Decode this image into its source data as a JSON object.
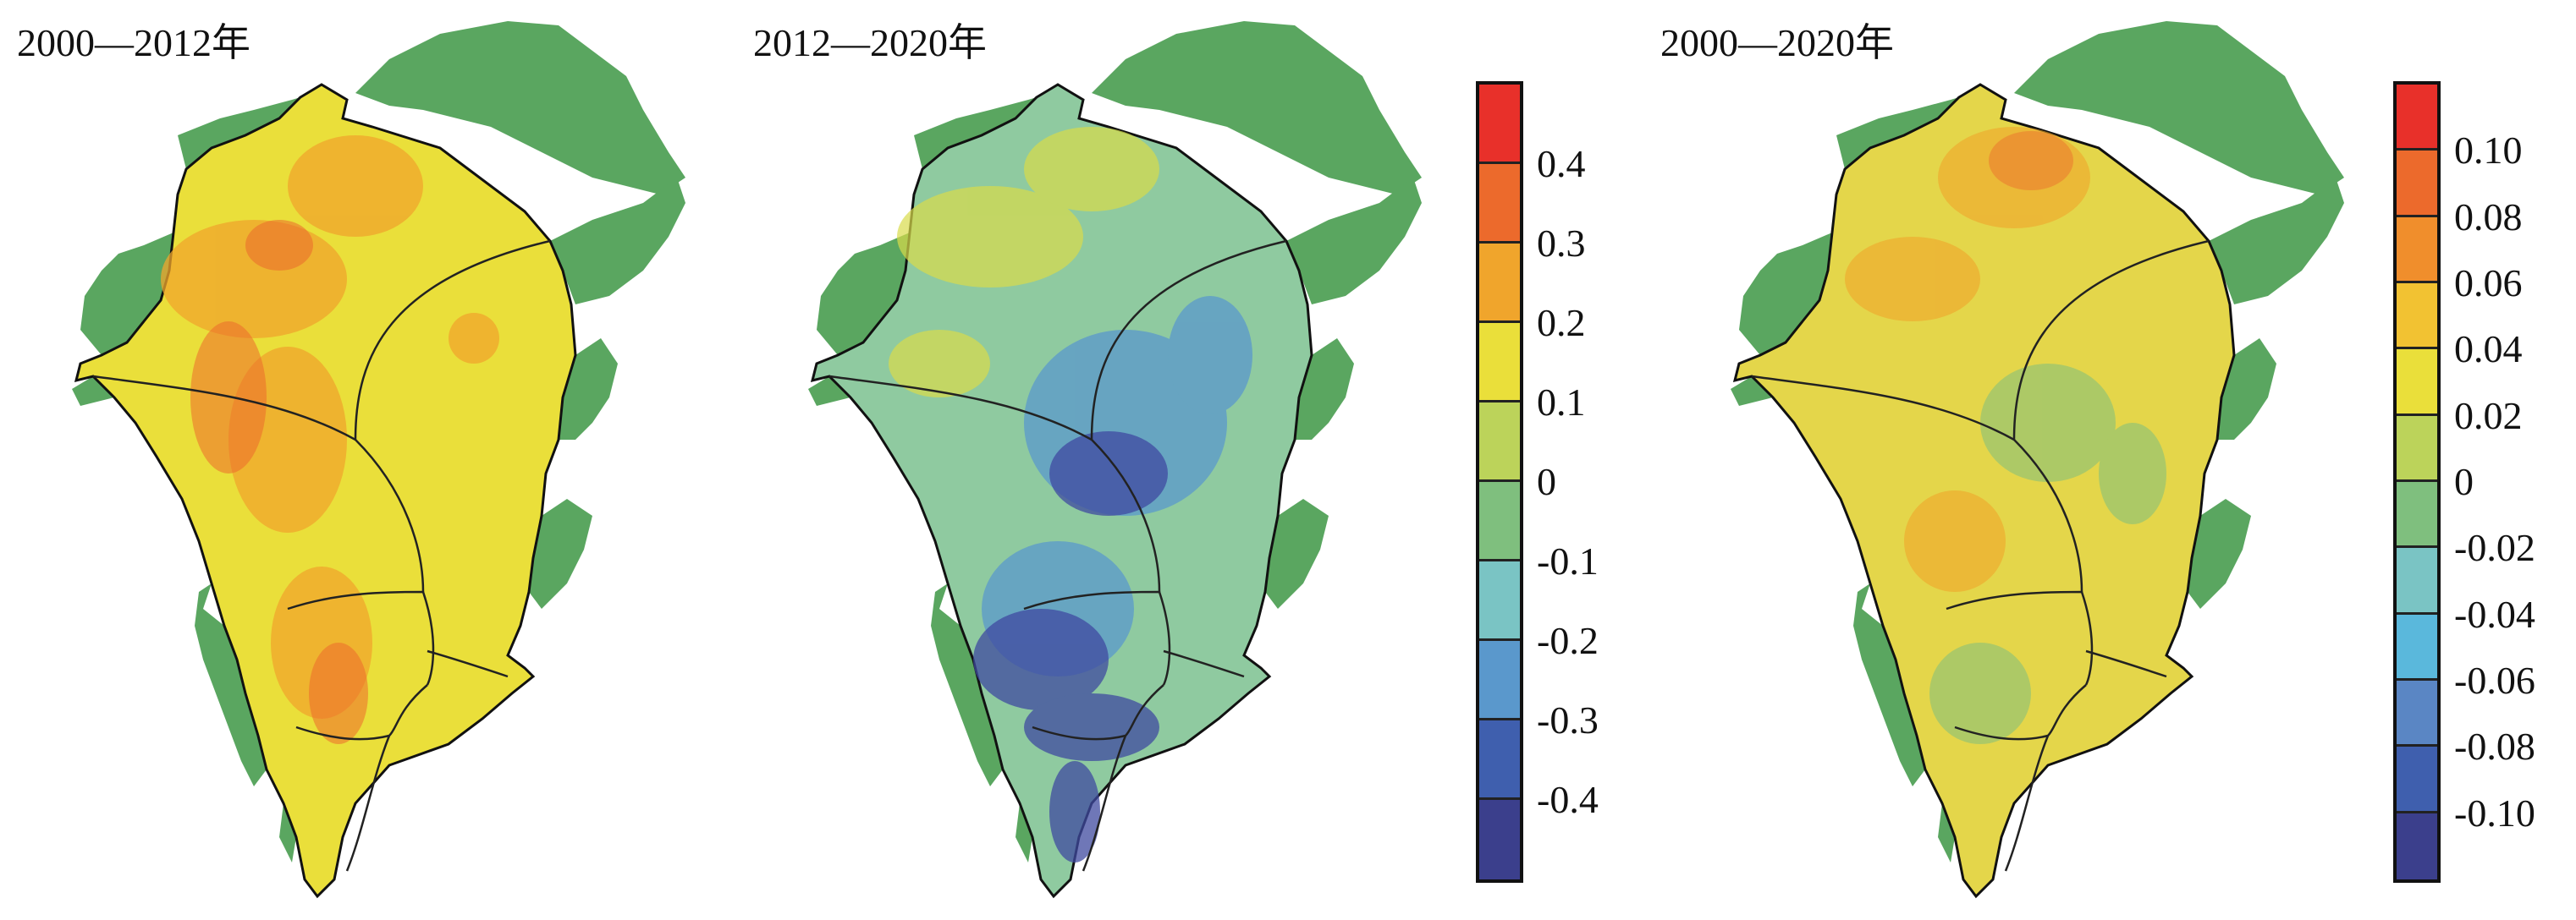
{
  "panels": [
    {
      "title": "2000—2012年"
    },
    {
      "title": "2012—2020年"
    },
    {
      "title": "2000—2020年"
    }
  ],
  "colorbar1": {
    "colors": [
      "#e8302a",
      "#ec6a2c",
      "#f0a52c",
      "#eadf3a",
      "#bcd35a",
      "#7fbf7e",
      "#7ac4c4",
      "#5a98cc",
      "#3f5fae",
      "#3b3f8c"
    ],
    "labels": [
      "0.4",
      "0.3",
      "0.2",
      "0.1",
      "0",
      "-0.1",
      "-0.2",
      "-0.3",
      "-0.4"
    ]
  },
  "colorbar2": {
    "colors": [
      "#e8302a",
      "#ec6a2c",
      "#f08e2c",
      "#f2c232",
      "#eadf3a",
      "#bcd35a",
      "#7fbf7e",
      "#7ac4c4",
      "#5ab8dc",
      "#5a86c4",
      "#3f5fae",
      "#3b3f8c"
    ],
    "labels": [
      "0.10",
      "0.08",
      "0.06",
      "0.04",
      "0.02",
      "0",
      "-0.02",
      "-0.04",
      "-0.06",
      "-0.08",
      "-0.10"
    ]
  },
  "legend": {
    "colors": {
      "ice_free_land": "#5aa660",
      "basin_lines": "#222222"
    }
  }
}
